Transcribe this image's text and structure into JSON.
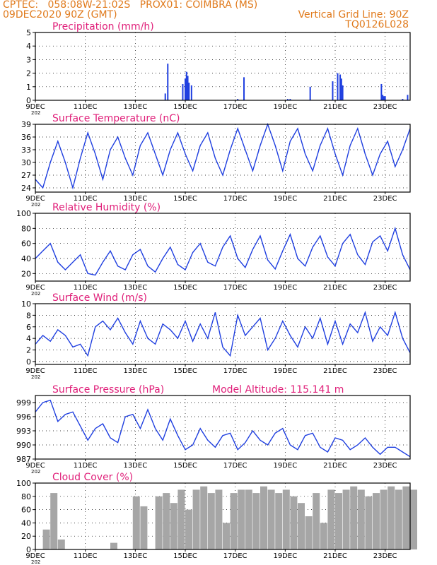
{
  "header": {
    "line1": "CPTEC:   058:08W-21:02S   PROX01: COIMBRA (MS)",
    "date": "09DEC2020 90Z (GMT)",
    "grid_note": "Vertical Grid Line: 90Z",
    "code": "TQ0126L028"
  },
  "colors": {
    "series": "#1f3fe0",
    "cloud": "#a6a6a6",
    "title": "#e0207a",
    "header": "#e07a1c"
  },
  "x_ticks": [
    "9DEC",
    "11DEC",
    "13DEC",
    "15DEC",
    "17DEC",
    "19DEC",
    "21DEC",
    "23DEC"
  ],
  "year_stub": "202",
  "chart_data": [
    {
      "id": "precip",
      "type": "bar",
      "title": "Precipitation (mm/h)",
      "ylim": [
        0,
        5
      ],
      "yticks": [
        0,
        1,
        2,
        3,
        4,
        5
      ],
      "x_days": [
        14.2,
        14.3,
        14.9,
        15.0,
        15.05,
        15.1,
        15.15,
        15.25,
        17.1,
        17.35,
        19.1,
        19.2,
        20.0,
        20.9,
        21.1,
        21.2,
        21.25,
        21.3,
        22.85,
        22.9,
        22.95,
        23.0,
        23.7,
        23.9
      ],
      "values": [
        0.5,
        2.7,
        1.2,
        1.6,
        2.1,
        1.8,
        1.3,
        1.1,
        0.1,
        1.7,
        0.1,
        0.1,
        1.0,
        1.4,
        2.0,
        1.9,
        1.6,
        1.1,
        1.2,
        0.4,
        0.3,
        0.3,
        0.1,
        0.4
      ]
    },
    {
      "id": "temp",
      "type": "line",
      "title": "Surface Temperature (nC)",
      "ylim": [
        23,
        39
      ],
      "yticks": [
        24,
        27,
        30,
        33,
        36,
        39
      ],
      "x_days": [
        9.0,
        9.3,
        9.6,
        9.9,
        10.2,
        10.5,
        10.8,
        11.1,
        11.4,
        11.7,
        12.0,
        12.3,
        12.6,
        12.9,
        13.2,
        13.5,
        13.8,
        14.1,
        14.4,
        14.7,
        15.0,
        15.3,
        15.6,
        15.9,
        16.2,
        16.5,
        16.8,
        17.1,
        17.4,
        17.7,
        18.0,
        18.3,
        18.6,
        18.9,
        19.2,
        19.5,
        19.8,
        20.1,
        20.4,
        20.7,
        21.0,
        21.3,
        21.6,
        21.9,
        22.2,
        22.5,
        22.8,
        23.1,
        23.4,
        23.7,
        24.0
      ],
      "values": [
        26.0,
        24.0,
        30.0,
        35.0,
        30.0,
        24.0,
        31.0,
        37.0,
        32.0,
        26.0,
        33.0,
        36.0,
        31.0,
        27.0,
        34.0,
        37.0,
        32.0,
        27.0,
        33.0,
        37.0,
        32.0,
        28.0,
        34.0,
        37.0,
        31.0,
        27.0,
        33.0,
        38.0,
        33.0,
        28.0,
        34.0,
        39.0,
        34.0,
        28.0,
        35.0,
        38.0,
        32.0,
        28.0,
        34.0,
        38.0,
        32.0,
        27.0,
        34.0,
        38.0,
        32.0,
        27.0,
        32.0,
        35.0,
        29.0,
        33.0,
        38.0
      ]
    },
    {
      "id": "rh",
      "type": "line",
      "title": "Relative Humidity (%)",
      "ylim": [
        10,
        100
      ],
      "yticks": [
        20,
        40,
        60,
        80,
        100
      ],
      "x_days": [
        9.0,
        9.3,
        9.6,
        9.9,
        10.2,
        10.5,
        10.8,
        11.1,
        11.4,
        11.7,
        12.0,
        12.3,
        12.6,
        12.9,
        13.2,
        13.5,
        13.8,
        14.1,
        14.4,
        14.7,
        15.0,
        15.3,
        15.6,
        15.9,
        16.2,
        16.5,
        16.8,
        17.1,
        17.4,
        17.7,
        18.0,
        18.3,
        18.6,
        18.9,
        19.2,
        19.5,
        19.8,
        20.1,
        20.4,
        20.7,
        21.0,
        21.3,
        21.6,
        21.9,
        22.2,
        22.5,
        22.8,
        23.1,
        23.4,
        23.7,
        24.0
      ],
      "values": [
        40.0,
        50.0,
        60.0,
        35.0,
        25.0,
        35.0,
        45.0,
        20.0,
        18.0,
        35.0,
        50.0,
        30.0,
        25.0,
        45.0,
        52.0,
        30.0,
        22.0,
        40.0,
        55.0,
        32.0,
        25.0,
        48.0,
        60.0,
        35.0,
        30.0,
        55.0,
        70.0,
        40.0,
        28.0,
        52.0,
        70.0,
        38.0,
        26.0,
        50.0,
        72.0,
        40.0,
        30.0,
        55.0,
        70.0,
        42.0,
        30.0,
        60.0,
        72.0,
        45.0,
        32.0,
        62.0,
        70.0,
        50.0,
        80.0,
        45.0,
        25.0
      ]
    },
    {
      "id": "wind",
      "type": "line",
      "title": "Surface Wind (m/s)",
      "ylim": [
        -0.5,
        10
      ],
      "yticks": [
        0,
        2,
        4,
        6,
        8,
        10
      ],
      "x_days": [
        9.0,
        9.3,
        9.6,
        9.9,
        10.2,
        10.5,
        10.8,
        11.1,
        11.4,
        11.7,
        12.0,
        12.3,
        12.6,
        12.9,
        13.2,
        13.5,
        13.8,
        14.1,
        14.4,
        14.7,
        15.0,
        15.3,
        15.6,
        15.9,
        16.2,
        16.5,
        16.8,
        17.1,
        17.4,
        17.7,
        18.0,
        18.3,
        18.6,
        18.9,
        19.2,
        19.5,
        19.8,
        20.1,
        20.4,
        20.7,
        21.0,
        21.3,
        21.6,
        21.9,
        22.2,
        22.5,
        22.8,
        23.1,
        23.4,
        23.7,
        24.0
      ],
      "values": [
        3.0,
        4.5,
        3.5,
        5.5,
        4.5,
        2.5,
        3.0,
        1.0,
        6.0,
        7.0,
        5.5,
        7.5,
        5.0,
        3.0,
        7.0,
        4.0,
        3.0,
        6.5,
        5.5,
        4.0,
        7.0,
        3.5,
        6.5,
        4.0,
        8.5,
        2.5,
        1.0,
        8.0,
        4.5,
        6.0,
        7.5,
        2.0,
        4.0,
        7.0,
        4.5,
        2.5,
        6.0,
        4.0,
        7.5,
        3.0,
        7.0,
        3.0,
        6.5,
        5.0,
        8.5,
        3.5,
        6.0,
        4.5,
        8.5,
        4.0,
        1.5
      ]
    },
    {
      "id": "press",
      "type": "line",
      "title": "Surface Pressure (hPa)",
      "subtitle": "Model Altitude: 115.141 m",
      "ylim": [
        987,
        1000.5
      ],
      "yticks": [
        987,
        990,
        993,
        996,
        999
      ],
      "x_days": [
        9.0,
        9.3,
        9.6,
        9.9,
        10.2,
        10.5,
        10.8,
        11.1,
        11.4,
        11.7,
        12.0,
        12.3,
        12.6,
        12.9,
        13.2,
        13.5,
        13.8,
        14.1,
        14.4,
        14.7,
        15.0,
        15.3,
        15.6,
        15.9,
        16.2,
        16.5,
        16.8,
        17.1,
        17.4,
        17.7,
        18.0,
        18.3,
        18.6,
        18.9,
        19.2,
        19.5,
        19.8,
        20.1,
        20.4,
        20.7,
        21.0,
        21.3,
        21.6,
        21.9,
        22.2,
        22.5,
        22.8,
        23.1,
        23.4,
        23.7,
        24.0
      ],
      "values": [
        997.0,
        999.0,
        999.5,
        995.0,
        996.5,
        997.0,
        994.0,
        991.0,
        993.5,
        994.5,
        991.5,
        990.5,
        996.0,
        996.5,
        993.5,
        997.5,
        993.5,
        991.0,
        995.5,
        992.0,
        989.0,
        990.0,
        993.5,
        991.0,
        989.5,
        992.0,
        992.5,
        989.0,
        990.5,
        993.0,
        991.0,
        990.0,
        992.5,
        993.5,
        990.0,
        989.0,
        992.0,
        992.5,
        989.5,
        988.5,
        991.5,
        991.0,
        989.0,
        990.0,
        991.5,
        989.5,
        988.0,
        989.5,
        989.5,
        988.5,
        987.5
      ]
    },
    {
      "id": "cloud",
      "type": "area",
      "title": "Cloud Cover (%)",
      "ylim": [
        0,
        100
      ],
      "yticks": [
        0,
        20,
        40,
        60,
        80,
        100
      ],
      "x_days": [
        9.0,
        9.3,
        9.6,
        9.9,
        10.2,
        10.5,
        10.8,
        11.1,
        11.4,
        11.7,
        12.0,
        12.3,
        12.6,
        12.9,
        13.2,
        13.5,
        13.8,
        14.1,
        14.4,
        14.7,
        15.0,
        15.3,
        15.6,
        15.9,
        16.2,
        16.5,
        16.8,
        17.1,
        17.4,
        17.7,
        18.0,
        18.3,
        18.6,
        18.9,
        19.2,
        19.5,
        19.8,
        20.1,
        20.4,
        20.7,
        21.0,
        21.3,
        21.6,
        21.9,
        22.2,
        22.5,
        22.8,
        23.1,
        23.4,
        23.7,
        24.0
      ],
      "values": [
        0.0,
        30.0,
        85.0,
        15.0,
        0.0,
        0.0,
        0.0,
        0.0,
        0.0,
        0.0,
        10.0,
        0.0,
        0.0,
        80.0,
        65.0,
        0.0,
        80.0,
        85.0,
        70.0,
        90.0,
        60.0,
        90.0,
        95.0,
        85.0,
        90.0,
        40.0,
        85.0,
        90.0,
        90.0,
        85.0,
        95.0,
        90.0,
        85.0,
        90.0,
        80.0,
        70.0,
        50.0,
        85.0,
        40.0,
        90.0,
        85.0,
        90.0,
        95.0,
        90.0,
        80.0,
        85.0,
        90.0,
        95.0,
        90.0,
        95.0,
        90.0
      ]
    }
  ]
}
